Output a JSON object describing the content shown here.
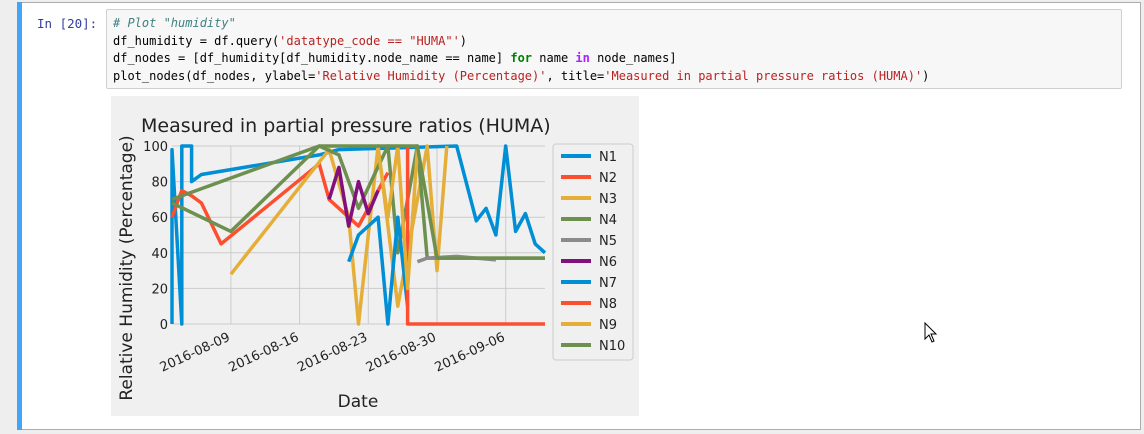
{
  "cell": {
    "prompt": "In [20]:",
    "code_lines": [
      [
        {
          "t": "# Plot \"humidity\"",
          "c": "c-comment"
        }
      ],
      [
        {
          "t": "df_humidity = df.query(",
          "c": ""
        },
        {
          "t": "'datatype_code == \"HUMA\"'",
          "c": "c-str"
        },
        {
          "t": ")",
          "c": ""
        }
      ],
      [
        {
          "t": "df_nodes = [df_humidity[df_humidity.node_name == name] ",
          "c": ""
        },
        {
          "t": "for",
          "c": "c-kw"
        },
        {
          "t": " name ",
          "c": ""
        },
        {
          "t": "in",
          "c": "c-op"
        },
        {
          "t": " node_names]",
          "c": ""
        }
      ],
      [
        {
          "t": "plot_nodes(df_nodes, ylabel=",
          "c": ""
        },
        {
          "t": "'Relative Humidity (Percentage)'",
          "c": "c-str"
        },
        {
          "t": ", title=",
          "c": ""
        },
        {
          "t": "'Measured in partial pressure ratios (HUMA)'",
          "c": "c-str"
        },
        {
          "t": ")",
          "c": ""
        }
      ]
    ]
  },
  "chart_data": {
    "type": "line",
    "title": "Measured in partial pressure ratios (HUMA)",
    "xlabel": "Date",
    "ylabel": "Relative Humidity (Percentage)",
    "x_ticks": [
      "2016-08-09",
      "2016-08-16",
      "2016-08-23",
      "2016-08-30",
      "2016-09-06"
    ],
    "y_ticks": [
      0,
      20,
      40,
      60,
      80,
      100
    ],
    "xlim": [
      "2016-08-03",
      "2016-09-10"
    ],
    "ylim": [
      0,
      100
    ],
    "grid": true,
    "legend_position": "right",
    "series": [
      {
        "name": "N1",
        "color": "#008fd5",
        "points": [
          [
            "2016-08-03",
            0
          ],
          [
            "2016-08-03",
            98
          ],
          [
            "2016-08-04",
            0
          ],
          [
            "2016-08-04",
            100
          ],
          [
            "2016-08-05",
            100
          ],
          [
            "2016-08-05",
            80
          ],
          [
            "2016-08-06",
            84
          ],
          [
            "2016-08-18",
            95
          ],
          [
            "2016-08-20",
            98
          ],
          [
            "2016-09-01",
            100
          ],
          [
            "2016-09-03",
            58
          ],
          [
            "2016-09-04",
            65
          ],
          [
            "2016-09-05",
            50
          ],
          [
            "2016-09-06",
            100
          ],
          [
            "2016-09-07",
            52
          ],
          [
            "2016-09-08",
            62
          ],
          [
            "2016-09-09",
            45
          ],
          [
            "2016-09-10",
            40
          ]
        ]
      },
      {
        "name": "N2",
        "color": "#fc4f30",
        "points": [
          [
            "2016-08-03",
            60
          ],
          [
            "2016-08-04",
            75
          ],
          [
            "2016-08-05",
            72
          ],
          [
            "2016-08-06",
            68
          ],
          [
            "2016-08-08",
            45
          ],
          [
            "2016-08-18",
            90
          ],
          [
            "2016-08-19",
            70
          ],
          [
            "2016-08-22",
            55
          ],
          [
            "2016-08-25",
            85
          ]
        ]
      },
      {
        "name": "N3",
        "color": "#e5ae38",
        "points": [
          [
            "2016-08-09",
            28
          ],
          [
            "2016-08-19",
            98
          ],
          [
            "2016-08-21",
            60
          ],
          [
            "2016-08-22",
            0
          ],
          [
            "2016-08-24",
            100
          ],
          [
            "2016-08-26",
            10
          ],
          [
            "2016-08-29",
            100
          ],
          [
            "2016-08-30",
            30
          ],
          [
            "2016-08-31",
            100
          ]
        ]
      },
      {
        "name": "N4",
        "color": "#6d904f",
        "points": [
          [
            "2016-08-03",
            68
          ],
          [
            "2016-08-09",
            52
          ],
          [
            "2016-08-18",
            100
          ],
          [
            "2016-08-20",
            95
          ],
          [
            "2016-08-22",
            65
          ],
          [
            "2016-08-25",
            100
          ],
          [
            "2016-08-26",
            40
          ],
          [
            "2016-08-28",
            100
          ],
          [
            "2016-08-29",
            37
          ],
          [
            "2016-09-10",
            37
          ]
        ]
      },
      {
        "name": "N5",
        "color": "#8b8b8b",
        "points": [
          [
            "2016-08-28",
            35
          ],
          [
            "2016-08-29",
            37
          ],
          [
            "2016-09-01",
            38
          ],
          [
            "2016-09-05",
            36
          ]
        ]
      },
      {
        "name": "N6",
        "color": "#810f7c",
        "points": [
          [
            "2016-08-19",
            70
          ],
          [
            "2016-08-20",
            88
          ],
          [
            "2016-08-21",
            55
          ],
          [
            "2016-08-22",
            80
          ],
          [
            "2016-08-23",
            62
          ],
          [
            "2016-08-24",
            75
          ]
        ]
      },
      {
        "name": "N7",
        "color": "#008fd5",
        "points": [
          [
            "2016-08-21",
            35
          ],
          [
            "2016-08-22",
            50
          ],
          [
            "2016-08-24",
            60
          ],
          [
            "2016-08-25",
            0
          ],
          [
            "2016-08-26",
            60
          ],
          [
            "2016-08-27",
            10
          ]
        ]
      },
      {
        "name": "N8",
        "color": "#fc4f30",
        "points": [
          [
            "2016-08-27",
            100
          ],
          [
            "2016-08-27",
            0
          ],
          [
            "2016-09-10",
            0
          ]
        ]
      },
      {
        "name": "N9",
        "color": "#e5ae38",
        "points": [
          [
            "2016-08-24",
            98
          ],
          [
            "2016-08-25",
            60
          ],
          [
            "2016-08-26",
            100
          ],
          [
            "2016-08-27",
            20
          ],
          [
            "2016-08-28",
            98
          ]
        ]
      },
      {
        "name": "N10",
        "color": "#6d904f",
        "points": [
          [
            "2016-08-03",
            70
          ],
          [
            "2016-08-18",
            100
          ],
          [
            "2016-08-28",
            100
          ],
          [
            "2016-08-30",
            37
          ],
          [
            "2016-09-10",
            37
          ]
        ]
      }
    ]
  }
}
